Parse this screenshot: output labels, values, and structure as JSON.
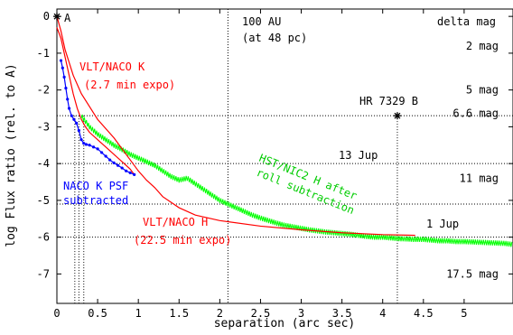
{
  "chart_data": {
    "type": "line",
    "xlabel": "separation (arc sec)",
    "ylabel": "log Flux ratio (rel. to A)",
    "xlim": [
      0,
      5.6
    ],
    "ylim": [
      -7.8,
      0.2
    ],
    "xticks": [
      {
        "v": 0,
        "label": "0"
      },
      {
        "v": 0.5,
        "label": "0.5"
      },
      {
        "v": 1,
        "label": "1"
      },
      {
        "v": 1.5,
        "label": "1.5"
      },
      {
        "v": 2,
        "label": "2"
      },
      {
        "v": 2.5,
        "label": "2.5"
      },
      {
        "v": 3,
        "label": "3"
      },
      {
        "v": 3.5,
        "label": "3.5"
      },
      {
        "v": 4,
        "label": "4"
      },
      {
        "v": 4.5,
        "label": "4.5"
      },
      {
        "v": 5,
        "label": "5"
      }
    ],
    "yticks": [
      {
        "v": 0,
        "label": "0"
      },
      {
        "v": -1,
        "label": "-1"
      },
      {
        "v": -2,
        "label": "-2"
      },
      {
        "v": -3,
        "label": "-3"
      },
      {
        "v": -4,
        "label": "-4"
      },
      {
        "v": -5,
        "label": "-5"
      },
      {
        "v": -6,
        "label": "-6"
      },
      {
        "v": -7,
        "label": "-7"
      }
    ],
    "series": [
      {
        "name": "VLT/NACO K (2.7 min expo)",
        "color": "#ff0000",
        "x": [
          0.0,
          0.05,
          0.1,
          0.15,
          0.2,
          0.25,
          0.3,
          0.35,
          0.4,
          0.5,
          0.6,
          0.7,
          0.8,
          0.9,
          0.95
        ],
        "y": [
          -0.3,
          -0.6,
          -1.1,
          -1.6,
          -2.1,
          -2.5,
          -2.8,
          -3.0,
          -3.15,
          -3.35,
          -3.55,
          -3.75,
          -3.95,
          -4.15,
          -4.3
        ]
      },
      {
        "name": "NACO K PSF subtracted",
        "color": "#0000ff",
        "x": [
          0.05,
          0.07,
          0.09,
          0.11,
          0.13,
          0.15,
          0.18,
          0.21,
          0.24,
          0.27,
          0.3,
          0.33,
          0.36,
          0.4,
          0.45,
          0.5,
          0.55,
          0.6,
          0.65,
          0.7,
          0.75,
          0.8,
          0.85,
          0.9,
          0.95
        ],
        "y": [
          -1.2,
          -1.4,
          -1.65,
          -1.95,
          -2.25,
          -2.5,
          -2.7,
          -2.8,
          -2.9,
          -3.1,
          -3.35,
          -3.45,
          -3.48,
          -3.5,
          -3.55,
          -3.6,
          -3.7,
          -3.8,
          -3.9,
          -3.98,
          -4.05,
          -4.12,
          -4.2,
          -4.25,
          -4.3
        ]
      },
      {
        "name": "HST/NIC2 H after roll subtraction",
        "color": "#00ff00",
        "x": [
          0.3,
          0.4,
          0.5,
          0.6,
          0.7,
          0.8,
          0.9,
          1.0,
          1.1,
          1.2,
          1.3,
          1.4,
          1.5,
          1.6,
          1.7,
          1.8,
          1.9,
          2.0,
          2.1,
          2.2,
          2.3,
          2.4,
          2.5,
          2.6,
          2.7,
          2.8,
          2.9,
          3.0,
          3.1,
          3.2,
          3.3,
          3.4,
          3.5,
          3.6,
          3.7,
          3.8,
          3.9,
          4.0,
          4.1,
          4.2,
          4.3,
          4.4,
          4.5,
          4.6,
          4.7,
          4.8,
          4.9,
          5.0,
          5.1,
          5.2,
          5.3,
          5.4,
          5.5,
          5.6
        ],
        "y": [
          -2.7,
          -3.0,
          -3.2,
          -3.35,
          -3.5,
          -3.62,
          -3.75,
          -3.85,
          -3.95,
          -4.05,
          -4.2,
          -4.35,
          -4.45,
          -4.4,
          -4.55,
          -4.7,
          -4.85,
          -5.0,
          -5.1,
          -5.2,
          -5.3,
          -5.4,
          -5.48,
          -5.55,
          -5.62,
          -5.68,
          -5.72,
          -5.76,
          -5.8,
          -5.83,
          -5.86,
          -5.88,
          -5.9,
          -5.92,
          -5.95,
          -5.98,
          -6.0,
          -6.0,
          -6.02,
          -6.04,
          -6.05,
          -6.06,
          -6.06,
          -6.08,
          -6.1,
          -6.1,
          -6.12,
          -6.12,
          -6.13,
          -6.14,
          -6.15,
          -6.16,
          -6.17,
          -6.2
        ]
      },
      {
        "name": "VLT/NACO H (22.5 min expo)",
        "color": "#ff0000",
        "x": [
          0.0,
          0.05,
          0.1,
          0.2,
          0.3,
          0.5,
          0.7,
          0.9,
          1.0,
          1.1,
          1.2,
          1.3,
          1.5,
          1.7,
          2.0,
          2.5,
          3.0,
          3.5,
          4.0,
          4.4
        ],
        "y": [
          0.0,
          -0.4,
          -0.9,
          -1.6,
          -2.1,
          -2.8,
          -3.3,
          -3.9,
          -4.2,
          -4.45,
          -4.65,
          -4.9,
          -5.2,
          -5.4,
          -5.55,
          -5.7,
          -5.8,
          -5.88,
          -5.93,
          -5.95
        ]
      }
    ],
    "points": [
      {
        "name": "A",
        "x": 0.0,
        "y": 0.0
      },
      {
        "name": "HR 7329 B",
        "x": 4.18,
        "y": -2.7
      }
    ],
    "annotations": {
      "top_label": "100 AU",
      "top_sublabel": "(at 48 pc)",
      "delta_header": "delta mag",
      "point_A": "A",
      "point_B": "HR 7329 B",
      "naco_k_line1": "VLT/NACO K",
      "naco_k_line2": "(2.7 min expo)",
      "psf_line1": "NACO K PSF",
      "psf_line2": "subtracted",
      "hst_line1": "HST/NIC2 H after",
      "hst_line2": "roll subtraction",
      "naco_h_line1": "VLT/NACO H",
      "naco_h_line2": "(22.5 min expo)",
      "jup13": "13 Jup",
      "jup1": "1 Jup"
    },
    "delta_mags": [
      {
        "label": "2 mag",
        "y": -0.8
      },
      {
        "label": "5 mag",
        "y": -2.0
      },
      {
        "label": "6.6 mag",
        "y": -2.64
      },
      {
        "label": "11 mag",
        "y": -4.4
      },
      {
        "label": "17.5 mag",
        "y": -7.0
      }
    ],
    "dotted_lines": {
      "vertical_x": [
        0.22,
        0.27,
        0.33,
        2.1,
        4.18
      ],
      "horizontal_y": [
        -2.7,
        -4.0,
        -5.1,
        -6.0
      ]
    }
  }
}
